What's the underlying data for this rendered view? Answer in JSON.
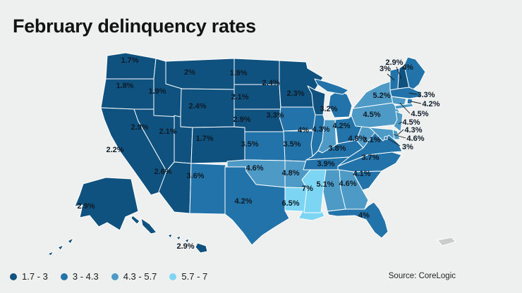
{
  "title": "February delinquency rates",
  "source": "Source: CoreLogic",
  "legend": [
    {
      "label": "1.7 - 3",
      "color": "#0f5280"
    },
    {
      "label": "3 - 4.3",
      "color": "#2273a9"
    },
    {
      "label": "4.3 - 5.7",
      "color": "#4e9ac6"
    },
    {
      "label": "5.7 - 7",
      "color": "#7cd5f2"
    }
  ],
  "chart_data": {
    "type": "heatmap",
    "title": "February delinquency rates",
    "legend_position": "bottom-left",
    "unit": "%",
    "bins": [
      "1.7 - 3",
      "3 - 4.3",
      "4.3 - 5.7",
      "5.7 - 7"
    ],
    "series": [
      {
        "name": "Washington",
        "value": 1.7
      },
      {
        "name": "Oregon",
        "value": 1.8
      },
      {
        "name": "California",
        "value": 2.2
      },
      {
        "name": "Nevada",
        "value": 2.9
      },
      {
        "name": "Idaho",
        "value": 1.9
      },
      {
        "name": "Montana",
        "value": 2.0
      },
      {
        "name": "Wyoming",
        "value": 2.4
      },
      {
        "name": "Utah",
        "value": 2.1
      },
      {
        "name": "Colorado",
        "value": 1.7
      },
      {
        "name": "Arizona",
        "value": 2.6
      },
      {
        "name": "New Mexico",
        "value": 3.6
      },
      {
        "name": "North Dakota",
        "value": 1.9
      },
      {
        "name": "South Dakota",
        "value": 2.1
      },
      {
        "name": "Nebraska",
        "value": 2.9
      },
      {
        "name": "Kansas",
        "value": 3.5
      },
      {
        "name": "Oklahoma",
        "value": 4.6
      },
      {
        "name": "Texas",
        "value": 4.2
      },
      {
        "name": "Minnesota",
        "value": 2.4
      },
      {
        "name": "Iowa",
        "value": 3.3
      },
      {
        "name": "Wisconsin",
        "value": 2.3
      },
      {
        "name": "Illinois",
        "value": 4.0
      },
      {
        "name": "Michigan",
        "value": 3.2
      },
      {
        "name": "Missouri",
        "value": 3.5
      },
      {
        "name": "Arkansas",
        "value": 4.8
      },
      {
        "name": "Louisiana",
        "value": 6.5
      },
      {
        "name": "Mississippi",
        "value": 7.0
      },
      {
        "name": "Indiana",
        "value": 4.3
      },
      {
        "name": "Ohio",
        "value": 4.2
      },
      {
        "name": "Kentucky",
        "value": 3.8
      },
      {
        "name": "Tennessee",
        "value": 3.9
      },
      {
        "name": "West Virginia",
        "value": 4.9
      },
      {
        "name": "Virginia",
        "value": 3.1
      },
      {
        "name": "North Carolina",
        "value": 3.7
      },
      {
        "name": "South Carolina",
        "value": 4.1
      },
      {
        "name": "Alabama",
        "value": 5.1
      },
      {
        "name": "Georgia",
        "value": 4.6
      },
      {
        "name": "Florida",
        "value": 4.0
      },
      {
        "name": "Pennsylvania",
        "value": 4.5
      },
      {
        "name": "New York",
        "value": 5.2
      },
      {
        "name": "New Jersey",
        "value": 4.5
      },
      {
        "name": "Delaware",
        "value": 4.3
      },
      {
        "name": "Maryland",
        "value": 4.6
      },
      {
        "name": "District of Columbia",
        "value": 3.0
      },
      {
        "name": "Vermont",
        "value": 3.0
      },
      {
        "name": "New Hampshire",
        "value": 2.9
      },
      {
        "name": "Maine",
        "value": 4.0
      },
      {
        "name": "Massachusetts",
        "value": 3.3
      },
      {
        "name": "Connecticut",
        "value": 4.5
      },
      {
        "name": "Rhode Island",
        "value": 4.2
      },
      {
        "name": "Alaska",
        "value": 2.9
      },
      {
        "name": "Hawaii",
        "value": 2.9
      }
    ]
  },
  "map": {
    "no_data_color": "#c9cdcc",
    "border_color": "#ffffff",
    "label_color": "#0e1b26",
    "no_data_region": {
      "id": "PR",
      "name": "Puerto Rico"
    },
    "states": [
      {
        "id": "WA",
        "name": "Washington",
        "value": "1.7%",
        "bucket": 1
      },
      {
        "id": "OR",
        "name": "Oregon",
        "value": "1.8%",
        "bucket": 1
      },
      {
        "id": "CA",
        "name": "California",
        "value": "2.2%",
        "bucket": 1
      },
      {
        "id": "NV",
        "name": "Nevada",
        "value": "2.9%",
        "bucket": 1
      },
      {
        "id": "ID",
        "name": "Idaho",
        "value": "1.9%",
        "bucket": 1
      },
      {
        "id": "MT",
        "name": "Montana",
        "value": "2%",
        "bucket": 1
      },
      {
        "id": "WY",
        "name": "Wyoming",
        "value": "2.4%",
        "bucket": 1
      },
      {
        "id": "UT",
        "name": "Utah",
        "value": "2.1%",
        "bucket": 1
      },
      {
        "id": "CO",
        "name": "Colorado",
        "value": "1.7%",
        "bucket": 1
      },
      {
        "id": "AZ",
        "name": "Arizona",
        "value": "2.6%",
        "bucket": 1
      },
      {
        "id": "NM",
        "name": "New Mexico",
        "value": "3.6%",
        "bucket": 2
      },
      {
        "id": "ND",
        "name": "North Dakota",
        "value": "1.9%",
        "bucket": 1
      },
      {
        "id": "SD",
        "name": "South Dakota",
        "value": "2.1%",
        "bucket": 1
      },
      {
        "id": "NE",
        "name": "Nebraska",
        "value": "2.9%",
        "bucket": 1
      },
      {
        "id": "KS",
        "name": "Kansas",
        "value": "3.5%",
        "bucket": 2
      },
      {
        "id": "OK",
        "name": "Oklahoma",
        "value": "4.6%",
        "bucket": 3
      },
      {
        "id": "TX",
        "name": "Texas",
        "value": "4.2%",
        "bucket": 2
      },
      {
        "id": "MN",
        "name": "Minnesota",
        "value": "2.4%",
        "bucket": 1
      },
      {
        "id": "IA",
        "name": "Iowa",
        "value": "3.3%",
        "bucket": 2
      },
      {
        "id": "WI",
        "name": "Wisconsin",
        "value": "2.3%",
        "bucket": 1
      },
      {
        "id": "IL",
        "name": "Illinois",
        "value": "4%",
        "bucket": 2
      },
      {
        "id": "MI",
        "name": "Michigan",
        "value": "3.2%",
        "bucket": 2
      },
      {
        "id": "MO",
        "name": "Missouri",
        "value": "3.5%",
        "bucket": 2
      },
      {
        "id": "AR",
        "name": "Arkansas",
        "value": "4.8%",
        "bucket": 3
      },
      {
        "id": "LA",
        "name": "Louisiana",
        "value": "6.5%",
        "bucket": 4
      },
      {
        "id": "MS",
        "name": "Mississippi",
        "value": "7%",
        "bucket": 4
      },
      {
        "id": "IN",
        "name": "Indiana",
        "value": "4.3%",
        "bucket": 3
      },
      {
        "id": "OH",
        "name": "Ohio",
        "value": "4.2%",
        "bucket": 2
      },
      {
        "id": "KY",
        "name": "Kentucky",
        "value": "3.8%",
        "bucket": 2
      },
      {
        "id": "TN",
        "name": "Tennessee",
        "value": "3.9%",
        "bucket": 2
      },
      {
        "id": "WV",
        "name": "West Virginia",
        "value": "4.9%",
        "bucket": 3
      },
      {
        "id": "VA",
        "name": "Virginia",
        "value": "3.1%",
        "bucket": 2
      },
      {
        "id": "NC",
        "name": "North Carolina",
        "value": "3.7%",
        "bucket": 2
      },
      {
        "id": "SC",
        "name": "South Carolina",
        "value": "4.1%",
        "bucket": 2
      },
      {
        "id": "AL",
        "name": "Alabama",
        "value": "5.1%",
        "bucket": 3
      },
      {
        "id": "GA",
        "name": "Georgia",
        "value": "4.6%",
        "bucket": 3
      },
      {
        "id": "FL",
        "name": "Florida",
        "value": "4%",
        "bucket": 2
      },
      {
        "id": "PA",
        "name": "Pennsylvania",
        "value": "4.5%",
        "bucket": 3
      },
      {
        "id": "NY",
        "name": "New York",
        "value": "5.2%",
        "bucket": 3
      },
      {
        "id": "NJ",
        "name": "New Jersey",
        "value": "4.5%",
        "bucket": 3
      },
      {
        "id": "DE",
        "name": "Delaware",
        "value": "4.3%",
        "bucket": 3
      },
      {
        "id": "MD",
        "name": "Maryland",
        "value": "4.6%",
        "bucket": 3
      },
      {
        "id": "DC",
        "name": "District of Columbia",
        "value": "3%",
        "bucket": 2
      },
      {
        "id": "VT",
        "name": "Vermont",
        "value": "3%",
        "bucket": 2
      },
      {
        "id": "NH",
        "name": "New Hampshire",
        "value": "2.9%",
        "bucket": 1
      },
      {
        "id": "ME",
        "name": "Maine",
        "value": "4%",
        "bucket": 2
      },
      {
        "id": "MA",
        "name": "Massachusetts",
        "value": "3.3%",
        "bucket": 2
      },
      {
        "id": "CT",
        "name": "Connecticut",
        "value": "4.5%",
        "bucket": 3
      },
      {
        "id": "RI",
        "name": "Rhode Island",
        "value": "4.2%",
        "bucket": 2
      },
      {
        "id": "AK",
        "name": "Alaska",
        "value": "2.9%",
        "bucket": 1
      },
      {
        "id": "HI",
        "name": "Hawaii",
        "value": "2.9%",
        "bucket": 1
      }
    ]
  }
}
